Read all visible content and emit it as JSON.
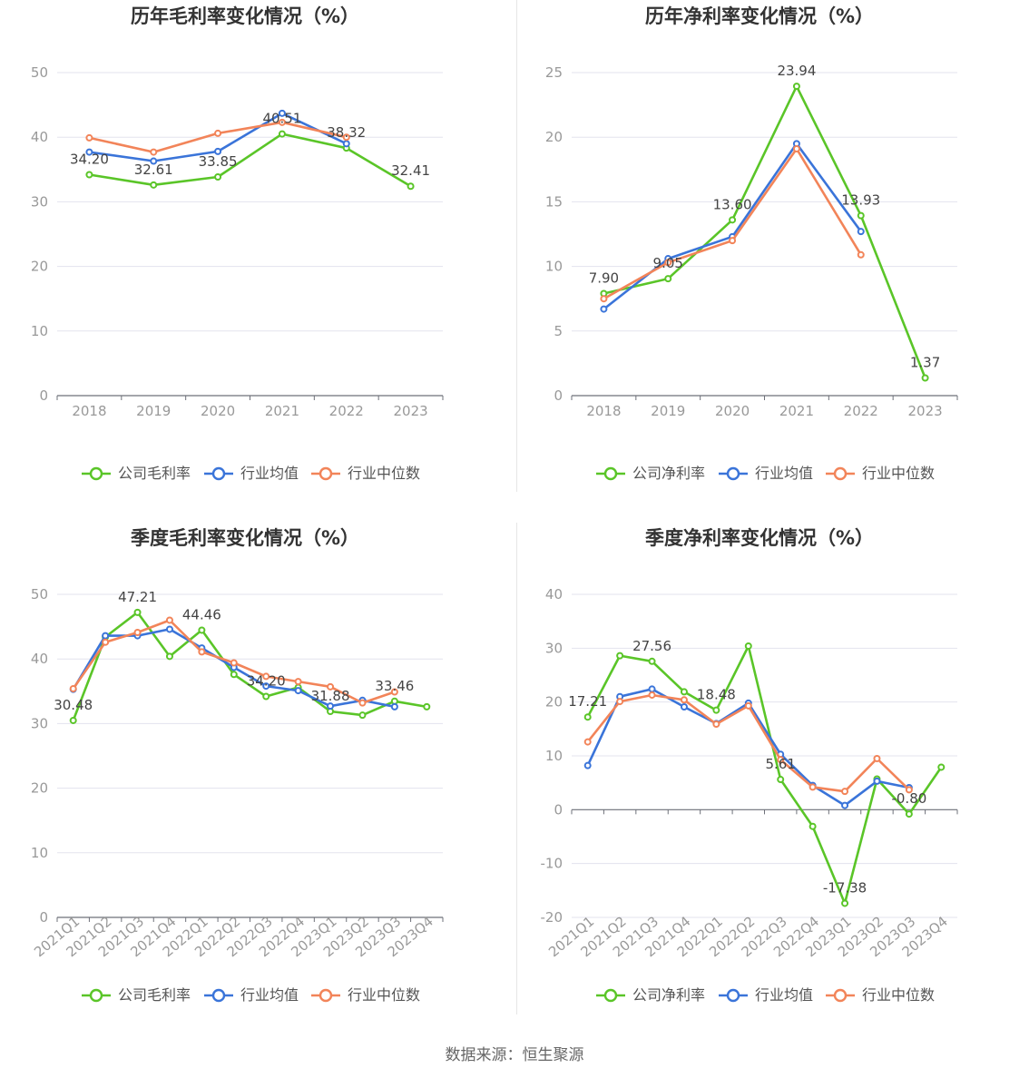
{
  "colors": {
    "company": "#5ac528",
    "avg": "#3a74d9",
    "median": "#f28459"
  },
  "legend": {
    "gross_company": "公司毛利率",
    "net_company": "公司净利率",
    "avg": "行业均值",
    "median": "行业中位数"
  },
  "footer": {
    "source": "数据来源：恒生聚源"
  },
  "chart_data": [
    {
      "id": "annual-gross",
      "type": "line",
      "title": "历年毛利率变化情况（%）",
      "categories": [
        "2018",
        "2019",
        "2020",
        "2021",
        "2022",
        "2023"
      ],
      "ylim": [
        0,
        50
      ],
      "yticks": [
        0,
        10,
        20,
        30,
        40,
        50
      ],
      "grid": true,
      "legend_position": "bottom",
      "series": [
        {
          "name": "公司毛利率",
          "key": "company",
          "values": [
            34.2,
            32.61,
            33.85,
            40.51,
            38.32,
            32.41
          ]
        },
        {
          "name": "行业均值",
          "key": "avg",
          "values": [
            37.7,
            36.3,
            37.8,
            43.7,
            39.0,
            null
          ]
        },
        {
          "name": "行业中位数",
          "key": "median",
          "values": [
            39.9,
            37.7,
            40.6,
            42.3,
            40.0,
            null
          ]
        }
      ],
      "data_labels": [
        {
          "index": 0,
          "text": "34.20"
        },
        {
          "index": 1,
          "text": "32.61"
        },
        {
          "index": 2,
          "text": "33.85"
        },
        {
          "index": 3,
          "text": "40.51"
        },
        {
          "index": 4,
          "text": "38.32"
        },
        {
          "index": 5,
          "text": "32.41"
        }
      ]
    },
    {
      "id": "annual-net",
      "type": "line",
      "title": "历年净利率变化情况（%）",
      "categories": [
        "2018",
        "2019",
        "2020",
        "2021",
        "2022",
        "2023"
      ],
      "ylim": [
        0,
        25
      ],
      "yticks": [
        0,
        5,
        10,
        15,
        20,
        25
      ],
      "grid": true,
      "legend_position": "bottom",
      "series": [
        {
          "name": "公司净利率",
          "key": "company",
          "values": [
            7.9,
            9.05,
            13.6,
            23.94,
            13.93,
            1.37
          ]
        },
        {
          "name": "行业均值",
          "key": "avg",
          "values": [
            6.7,
            10.6,
            12.3,
            19.5,
            12.7,
            null
          ]
        },
        {
          "name": "行业中位数",
          "key": "median",
          "values": [
            7.5,
            10.3,
            12.0,
            19.1,
            10.9,
            null
          ]
        }
      ],
      "data_labels": [
        {
          "index": 0,
          "text": "7.90"
        },
        {
          "index": 1,
          "text": "9.05"
        },
        {
          "index": 2,
          "text": "13.60"
        },
        {
          "index": 3,
          "text": "23.94"
        },
        {
          "index": 4,
          "text": "13.93"
        },
        {
          "index": 5,
          "text": "1.37"
        }
      ]
    },
    {
      "id": "quarterly-gross",
      "type": "line",
      "title": "季度毛利率变化情况（%）",
      "categories": [
        "2021Q1",
        "2021Q2",
        "2021Q3",
        "2021Q4",
        "2022Q1",
        "2022Q2",
        "2022Q3",
        "2022Q4",
        "2023Q1",
        "2023Q2",
        "2023Q3",
        "2023Q4"
      ],
      "ylim": [
        0,
        50
      ],
      "yticks": [
        0,
        10,
        20,
        30,
        40,
        50
      ],
      "grid": true,
      "legend_position": "bottom",
      "series": [
        {
          "name": "公司毛利率",
          "key": "company",
          "values": [
            30.48,
            43.4,
            47.21,
            40.4,
            44.46,
            37.6,
            34.2,
            35.6,
            31.88,
            31.3,
            33.46,
            32.6
          ]
        },
        {
          "name": "行业均值",
          "key": "avg",
          "values": [
            35.3,
            43.6,
            43.6,
            44.6,
            41.7,
            38.7,
            35.8,
            35.1,
            32.7,
            33.6,
            32.6,
            null
          ]
        },
        {
          "name": "行业中位数",
          "key": "median",
          "values": [
            35.4,
            42.6,
            44.1,
            46.0,
            41.1,
            39.4,
            37.3,
            36.5,
            35.7,
            33.2,
            34.9,
            null
          ]
        }
      ],
      "data_labels": [
        {
          "index": 0,
          "text": "30.48"
        },
        {
          "index": 2,
          "text": "47.21"
        },
        {
          "index": 4,
          "text": "44.46"
        },
        {
          "index": 6,
          "text": "34.20"
        },
        {
          "index": 8,
          "text": "31.88"
        },
        {
          "index": 10,
          "text": "33.46"
        }
      ]
    },
    {
      "id": "quarterly-net",
      "type": "line",
      "title": "季度净利率变化情况（%）",
      "categories": [
        "2021Q1",
        "2021Q2",
        "2021Q3",
        "2021Q4",
        "2022Q1",
        "2022Q2",
        "2022Q3",
        "2022Q4",
        "2023Q1",
        "2023Q2",
        "2023Q3",
        "2023Q4"
      ],
      "ylim": [
        -20,
        40
      ],
      "yticks": [
        -20,
        -10,
        0,
        10,
        20,
        30,
        40
      ],
      "grid": true,
      "legend_position": "bottom",
      "series": [
        {
          "name": "公司净利率",
          "key": "company",
          "values": [
            17.21,
            28.6,
            27.56,
            21.9,
            18.48,
            30.4,
            5.61,
            -3.1,
            -17.38,
            5.7,
            -0.8,
            7.9
          ]
        },
        {
          "name": "行业均值",
          "key": "avg",
          "values": [
            8.2,
            21.0,
            22.4,
            19.1,
            16.0,
            19.8,
            10.3,
            4.5,
            0.8,
            5.3,
            4.1,
            null
          ]
        },
        {
          "name": "行业中位数",
          "key": "median",
          "values": [
            12.6,
            20.1,
            21.3,
            20.4,
            15.9,
            19.3,
            9.3,
            4.2,
            3.4,
            9.5,
            3.7,
            null
          ]
        }
      ],
      "data_labels": [
        {
          "index": 0,
          "text": "17.21"
        },
        {
          "index": 2,
          "text": "27.56"
        },
        {
          "index": 4,
          "text": "18.48"
        },
        {
          "index": 6,
          "text": "5.61"
        },
        {
          "index": 8,
          "text": "-17.38"
        },
        {
          "index": 10,
          "text": "-0.80"
        }
      ]
    }
  ]
}
